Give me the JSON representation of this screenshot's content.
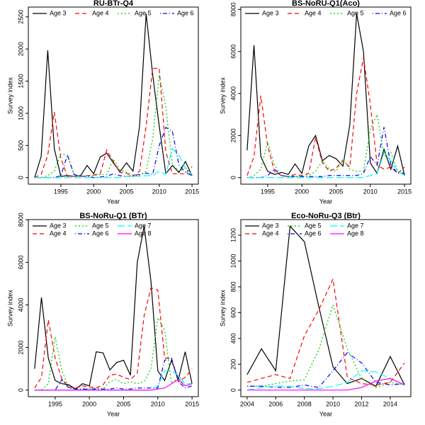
{
  "chart_data": [
    {
      "type": "line",
      "title": "RU-BTr-Q4",
      "xlabel": "Year",
      "ylabel": "Survey index",
      "x": [
        1991,
        1992,
        1993,
        1994,
        1995,
        1996,
        1997,
        1998,
        1999,
        2000,
        2001,
        2002,
        2003,
        2004,
        2005,
        2006,
        2007,
        2008,
        2009,
        2010,
        2011,
        2012,
        2013,
        2014,
        2015
      ],
      "xlim": [
        1990.04,
        2015.96
      ],
      "xticks": [
        1995,
        2000,
        2005,
        2010,
        2015
      ],
      "ylim": [
        -102,
        2652
      ],
      "yticks": [
        0,
        500,
        1000,
        1500,
        2000,
        2500
      ],
      "series": [
        {
          "name": "Age 3",
          "color": "#000000",
          "dash": "none",
          "values": [
            0,
            330,
            1980,
            450,
            20,
            30,
            20,
            30,
            190,
            60,
            320,
            380,
            230,
            90,
            230,
            100,
            800,
            2550,
            1600,
            800,
            60,
            190,
            80,
            250,
            30
          ]
        },
        {
          "name": "Age 4",
          "color": "#ff0000",
          "dash": "6,4",
          "values": [
            0,
            50,
            350,
            1020,
            300,
            20,
            20,
            20,
            30,
            40,
            60,
            430,
            250,
            80,
            70,
            20,
            100,
            800,
            1700,
            1700,
            400,
            60,
            60,
            60,
            170
          ]
        },
        {
          "name": "Age 5",
          "color": "#00cd00",
          "dash": "2,3",
          "values": [
            0,
            0,
            30,
            100,
            370,
            350,
            50,
            20,
            20,
            30,
            50,
            50,
            280,
            120,
            80,
            40,
            30,
            100,
            600,
            1600,
            1100,
            200,
            100,
            150,
            30
          ]
        },
        {
          "name": "Age 6",
          "color": "#0000ff",
          "dash": "1,3,6,3",
          "values": [
            0,
            0,
            0,
            0,
            30,
            350,
            50,
            20,
            20,
            0,
            10,
            20,
            60,
            30,
            20,
            30,
            50,
            70,
            50,
            500,
            780,
            720,
            200,
            80,
            30
          ]
        },
        {
          "color": "#00ffff",
          "dash": "10,4",
          "values": [
            0,
            0,
            0,
            0,
            0,
            0,
            0,
            0,
            0,
            0,
            0,
            0,
            0,
            0,
            20,
            20,
            20,
            30,
            30,
            100,
            50,
            450,
            350,
            150,
            50
          ]
        }
      ]
    },
    {
      "type": "line",
      "title": "BS-NoRU-Q1(Aco)",
      "xlabel": "Year",
      "ylabel": "Survey index",
      "x": [
        1992,
        1993,
        1994,
        1995,
        1996,
        1997,
        1998,
        1999,
        2000,
        2001,
        2002,
        2003,
        2004,
        2005,
        2006,
        2007,
        2008,
        2009,
        2010,
        2011,
        2012,
        2013,
        2014,
        2015
      ],
      "xlim": [
        1991.08,
        2015.92
      ],
      "xticks": [
        1995,
        2000,
        2005,
        2010,
        2015
      ],
      "ylim": [
        -312,
        8112
      ],
      "yticks": [
        0,
        2000,
        4000,
        6000,
        8000
      ],
      "series": [
        {
          "name": "Age 3",
          "color": "#000000",
          "dash": "none",
          "values": [
            1300,
            6300,
            1000,
            300,
            150,
            250,
            150,
            650,
            200,
            1500,
            2000,
            800,
            1050,
            900,
            550,
            2500,
            7800,
            6000,
            700,
            200,
            1350,
            400,
            1500,
            100
          ]
        },
        {
          "name": "Age 4",
          "color": "#ff0000",
          "dash": "6,4",
          "values": [
            100,
            1000,
            3900,
            1500,
            300,
            100,
            50,
            150,
            100,
            200,
            1900,
            700,
            300,
            450,
            800,
            500,
            4000,
            5700,
            3500,
            600,
            400,
            500,
            200,
            500
          ]
        },
        {
          "name": "Age 5",
          "color": "#00cd00",
          "dash": "2,3",
          "values": [
            0,
            100,
            400,
            1700,
            600,
            100,
            50,
            50,
            50,
            100,
            300,
            800,
            400,
            300,
            900,
            400,
            300,
            300,
            2300,
            3000,
            1000,
            1200,
            300,
            200
          ]
        },
        {
          "name": "Age 6",
          "color": "#0000ff",
          "dash": "1,3,6,3",
          "values": [
            0,
            0,
            0,
            100,
            400,
            100,
            50,
            50,
            50,
            50,
            50,
            50,
            100,
            100,
            100,
            100,
            100,
            200,
            1000,
            600,
            2400,
            600,
            200,
            200
          ]
        },
        {
          "color": "#00ffff",
          "dash": "10,4",
          "values": [
            0,
            0,
            0,
            0,
            0,
            0,
            0,
            0,
            0,
            0,
            0,
            0,
            0,
            0,
            0,
            0,
            0,
            0,
            100,
            200,
            1200,
            800,
            300,
            100
          ]
        }
      ]
    },
    {
      "type": "line",
      "title": "BS-NoRu-Q1 (BTr)",
      "xlabel": "Year",
      "ylabel": "Survey index",
      "x": [
        1992,
        1993,
        1994,
        1995,
        1996,
        1997,
        1998,
        1999,
        2000,
        2001,
        2002,
        2003,
        2004,
        2005,
        2006,
        2007,
        2008,
        2009,
        2010,
        2011,
        2012,
        2013,
        2014,
        2015
      ],
      "xlim": [
        1991.08,
        2015.92
      ],
      "xticks": [
        1995,
        2000,
        2005,
        2010,
        2015
      ],
      "ylim": [
        -308,
        8008
      ],
      "yticks": [
        0,
        2000,
        4000,
        6000,
        8000
      ],
      "series": [
        {
          "name": "Age 3",
          "color": "#000000",
          "dash": "none",
          "values": [
            1000,
            4350,
            1500,
            450,
            300,
            250,
            50,
            300,
            200,
            1800,
            1750,
            950,
            1300,
            1400,
            700,
            6000,
            7700,
            5100,
            900,
            450,
            1400,
            500,
            1800,
            300
          ]
        },
        {
          "name": "Age 4",
          "color": "#ff0000",
          "dash": "6,4",
          "values": [
            100,
            600,
            3300,
            1500,
            500,
            150,
            100,
            200,
            150,
            100,
            250,
            700,
            750,
            600,
            500,
            800,
            3500,
            4800,
            4700,
            1500,
            1500,
            400,
            600,
            1000
          ]
        },
        {
          "name": "Age 5",
          "color": "#00cd00",
          "dash": "2,3",
          "values": [
            0,
            0,
            300,
            2500,
            900,
            100,
            50,
            50,
            50,
            100,
            50,
            400,
            500,
            300,
            400,
            300,
            400,
            1000,
            3400,
            2800,
            300,
            600,
            200,
            300
          ]
        },
        {
          "name": "Age 6",
          "color": "#0000ff",
          "dash": "1,3,6,3",
          "values": [
            0,
            0,
            0,
            0,
            500,
            100,
            50,
            50,
            50,
            50,
            50,
            50,
            100,
            50,
            50,
            100,
            100,
            100,
            100,
            1400,
            1500,
            400,
            100,
            200
          ]
        },
        {
          "name": "Age 7",
          "color": "#00ffff",
          "dash": "10,4",
          "values": [
            0,
            0,
            0,
            0,
            0,
            0,
            0,
            0,
            0,
            0,
            0,
            0,
            0,
            0,
            0,
            0,
            0,
            0,
            200,
            900,
            900,
            700,
            300,
            300
          ]
        },
        {
          "name": "Age 8",
          "color": "#ff00ff",
          "dash": "none",
          "values": [
            0,
            0,
            0,
            0,
            0,
            0,
            0,
            0,
            0,
            0,
            0,
            0,
            0,
            0,
            0,
            0,
            0,
            0,
            50,
            100,
            300,
            500,
            200,
            300
          ]
        }
      ]
    },
    {
      "type": "line",
      "title": "Eco-NoRu-Q3 (Btr)",
      "xlabel": "Year",
      "ylabel": "Survey index",
      "x": [
        2004,
        2005,
        2006,
        2007,
        2008,
        2009,
        2010,
        2011,
        2012,
        2013,
        2014,
        2015
      ],
      "xlim": [
        2003.56,
        2015.44
      ],
      "xticks": [
        2004,
        2006,
        2008,
        2010,
        2012,
        2014
      ],
      "ylim": [
        -51,
        1321
      ],
      "yticks": [
        0,
        200,
        400,
        600,
        800,
        1000,
        1200
      ],
      "series": [
        {
          "name": "Age 3",
          "color": "#000000",
          "dash": "none",
          "values": [
            120,
            320,
            150,
            1270,
            1150,
            650,
            180,
            50,
            90,
            30,
            260,
            40
          ]
        },
        {
          "name": "Age 4",
          "color": "#ff0000",
          "dash": "6,4",
          "values": [
            60,
            90,
            120,
            90,
            420,
            620,
            860,
            100,
            50,
            40,
            60,
            210
          ]
        },
        {
          "name": "Age 5",
          "color": "#00cd00",
          "dash": "2,3",
          "values": [
            30,
            30,
            50,
            70,
            80,
            310,
            660,
            320,
            90,
            20,
            60,
            40
          ]
        },
        {
          "name": "Age 6",
          "color": "#0000ff",
          "dash": "1,3,6,3",
          "values": [
            30,
            30,
            20,
            20,
            40,
            20,
            150,
            290,
            210,
            60,
            40,
            50
          ]
        },
        {
          "name": "Age 7",
          "color": "#00ffff",
          "dash": "10,4",
          "values": [
            0,
            20,
            30,
            30,
            10,
            10,
            30,
            60,
            150,
            140,
            90,
            40
          ]
        },
        {
          "name": "Age 8",
          "color": "#ff00ff",
          "dash": "none",
          "values": [
            0,
            0,
            0,
            0,
            0,
            0,
            0,
            0,
            20,
            70,
            90,
            40
          ]
        }
      ]
    }
  ]
}
